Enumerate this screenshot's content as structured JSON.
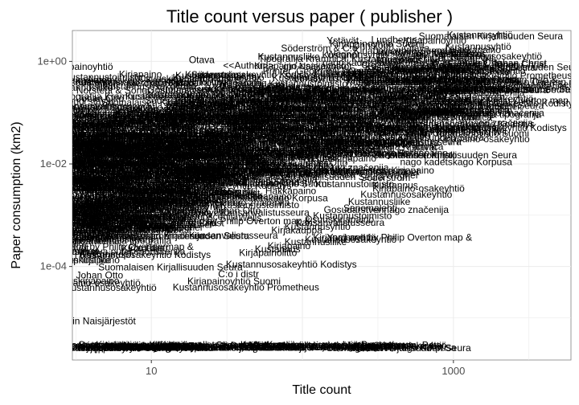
{
  "chart_data": {
    "type": "scatter",
    "title": "Title count versus paper ( publisher )",
    "xlabel": "Title count",
    "ylabel": "Paper consumption (km2)",
    "x_scale": "log10",
    "y_scale": "log10",
    "xlim": [
      3,
      6000
    ],
    "ylim": [
      1.5e-06,
      4
    ],
    "x_ticks": [
      {
        "value": 10,
        "label": "10"
      },
      {
        "value": 1000,
        "label": "1000"
      }
    ],
    "y_ticks": [
      {
        "value": 1,
        "label": "1e+00"
      },
      {
        "value": 0.01,
        "label": "1e-02"
      },
      {
        "value": 0.0001,
        "label": "1e-04"
      }
    ],
    "grid": true,
    "background": "#ffffff",
    "grid_color": "#ebebeb",
    "label_color": "#000000",
    "points": [
      {
        "x": 1330,
        "y": 0.81,
        "label": "Frenckell, Johan Christ"
      },
      {
        "x": 1300,
        "y": 0.55,
        "label": "Hansson, Peter"
      },
      {
        "x": 1350,
        "y": 0.37,
        "label": "Wall, Johan Otto"
      },
      {
        "x": 1150,
        "y": 0.31,
        "label": "Suomalaisen Kirjallisuuden Seura"
      },
      {
        "x": 680,
        "y": 0.24,
        "label": "Suomalaisen Kirjallisuuden Seura"
      },
      {
        "x": 1260,
        "y": 0.26,
        "label": "Christoph"
      },
      {
        "x": 230,
        "y": 0.15,
        "label": "Merckell, Jacob"
      },
      {
        "x": 470,
        "y": 0.17,
        "label": "<<Author>>"
      },
      {
        "x": 110,
        "y": 0.11,
        "label": "Svenska Litteratursällskapet"
      },
      {
        "x": 90,
        "y": 0.09,
        "label": "P. Norstedt & Söner"
      },
      {
        "x": 180,
        "y": 0.085,
        "label": "Söderström & C:o"
      },
      {
        "x": 680,
        "y": 0.07,
        "label": "Printer, Georg Wil"
      },
      {
        "x": 25,
        "y": 0.06,
        "label": "Gosudarstvennaja tipografija"
      },
      {
        "x": 14,
        "y": 0.045,
        "label": "Lundbergs"
      },
      {
        "x": 17,
        "y": 0.045,
        "label": "Edlund"
      },
      {
        "x": 300,
        "y": 0.055,
        "label": "Wells"
      },
      {
        "x": 4,
        "y": 0.033,
        "label": "Ministerstva putej soobščenija"
      },
      {
        "x": 690,
        "y": 0.035,
        "label": "Weilin"
      },
      {
        "x": 690,
        "y": 0.031,
        "label": "Anton"
      },
      {
        "x": 590,
        "y": 0.022,
        "label": "Otava"
      },
      {
        "x": 690,
        "y": 0.018,
        "label": "Ystävät"
      },
      {
        "x": 610,
        "y": 0.014,
        "label": "Hakkapaino"
      },
      {
        "x": 640,
        "y": 0.0095,
        "label": "nago kadetskago Korpusa"
      },
      {
        "x": 560,
        "y": 0.0065,
        "label": "Kirjapaino"
      },
      {
        "x": 510,
        "y": 0.0052,
        "label": "Wegner"
      },
      {
        "x": 350,
        "y": 0.0047,
        "label": "Söderström"
      },
      {
        "x": 420,
        "y": 0.0033,
        "label": "Kustannus"
      },
      {
        "x": 420,
        "y": 0.0029,
        "label": "Kirjapaino-osakeyhtiö"
      },
      {
        "x": 350,
        "y": 0.0022,
        "label": "Kustannusosakeyhtiö"
      },
      {
        "x": 290,
        "y": 0.0016,
        "label": "Kustannusliike"
      },
      {
        "x": 270,
        "y": 0.0012,
        "label": "Sanomalehti"
      },
      {
        "x": 200,
        "y": 0.0011,
        "label": "Gosudarstvennago značenija"
      },
      {
        "x": 170,
        "y": 0.00085,
        "label": "Kustannustoimisto"
      },
      {
        "x": 150,
        "y": 0.00072,
        "label": "Osuuskirjapaino"
      },
      {
        "x": 130,
        "y": 0.00062,
        "label": "Kansanvalistusseura"
      },
      {
        "x": 110,
        "y": 0.00052,
        "label": "Kustannusyhtiö"
      },
      {
        "x": 90,
        "y": 0.00044,
        "label": "Kirjakauppa"
      },
      {
        "x": 170,
        "y": 0.00032,
        "label": "Kirjapainoyhtiö"
      },
      {
        "x": 150,
        "y": 0.00029,
        "label": "Kustannusosakeyhtiö"
      },
      {
        "x": 210,
        "y": 0.00032,
        "label": "Yard and by Philip Overton map &"
      },
      {
        "x": 110,
        "y": 0.00026,
        "label": "Kustannusliike"
      },
      {
        "x": 85,
        "y": 0.00022,
        "label": "Kirjapaino"
      },
      {
        "x": 70,
        "y": 0.00019,
        "label": "Kustannus"
      },
      {
        "x": 55,
        "y": 0.00016,
        "label": "Kirjapainolitto"
      },
      {
        "x": 45,
        "y": 9.5e-05,
        "label": "Kustannusosakeyhtiö Kodistys"
      },
      {
        "x": 40,
        "y": 6.2e-05,
        "label": "C:o i distr"
      },
      {
        "x": 25,
        "y": 4.5e-05,
        "label": "Kirjapainoyhtiö Suomi"
      },
      {
        "x": 20,
        "y": 3.4e-05,
        "label": "Kustannusosakeyhtiö Prometheus"
      },
      {
        "x": 4,
        "y": 7.5e-06,
        "label": "gin Naisjärjestöt"
      },
      {
        "x": 320,
        "y": 2.4e-06,
        "label": "Tipografija Kramnica"
      }
    ]
  }
}
